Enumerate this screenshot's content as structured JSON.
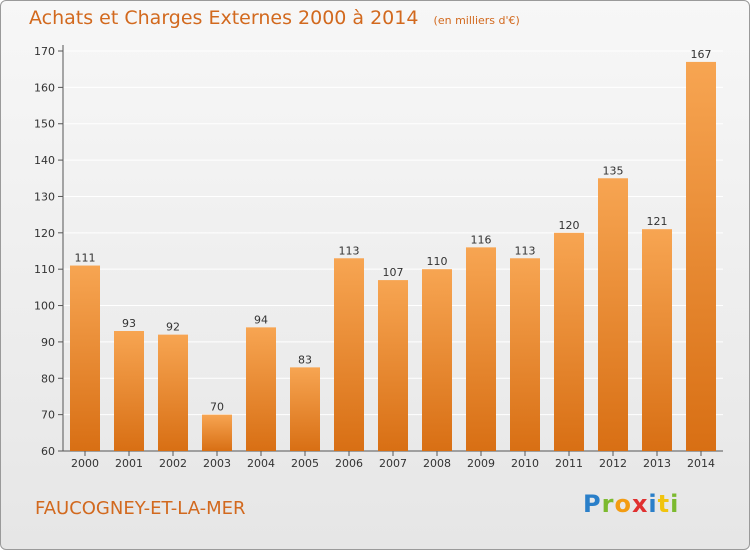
{
  "header": {
    "title": "Achats et Charges Externes 2000 à 2014",
    "unit": "(en milliers d'€)"
  },
  "footer": {
    "commune": "FAUCOGNEY-ET-LA-MER",
    "logo_letters": [
      "P",
      "r",
      "o",
      "x",
      "i",
      "t",
      "i"
    ],
    "logo_colors": [
      "#2a7fc9",
      "#7cba2f",
      "#f39c12",
      "#e03030",
      "#2a7fc9",
      "#f1c40f",
      "#7cba2f"
    ]
  },
  "colors": {
    "bar_top": "#f7a552",
    "bar_bottom": "#d86f14",
    "grid": "#ffffff",
    "text_accent": "#d2691e"
  },
  "chart_data": {
    "type": "bar",
    "title": "Achats et Charges Externes 2000 à 2014",
    "subtitle": "(en milliers d'€)",
    "categories": [
      "2000",
      "2001",
      "2002",
      "2003",
      "2004",
      "2005",
      "2006",
      "2007",
      "2008",
      "2009",
      "2010",
      "2011",
      "2012",
      "2013",
      "2014"
    ],
    "values": [
      111,
      93,
      92,
      70,
      94,
      83,
      113,
      107,
      110,
      116,
      113,
      120,
      135,
      121,
      167
    ],
    "ylim": [
      60,
      170
    ],
    "yticks": [
      60,
      70,
      80,
      90,
      100,
      110,
      120,
      130,
      140,
      150,
      160,
      170
    ],
    "grid": true,
    "legend": "none"
  }
}
